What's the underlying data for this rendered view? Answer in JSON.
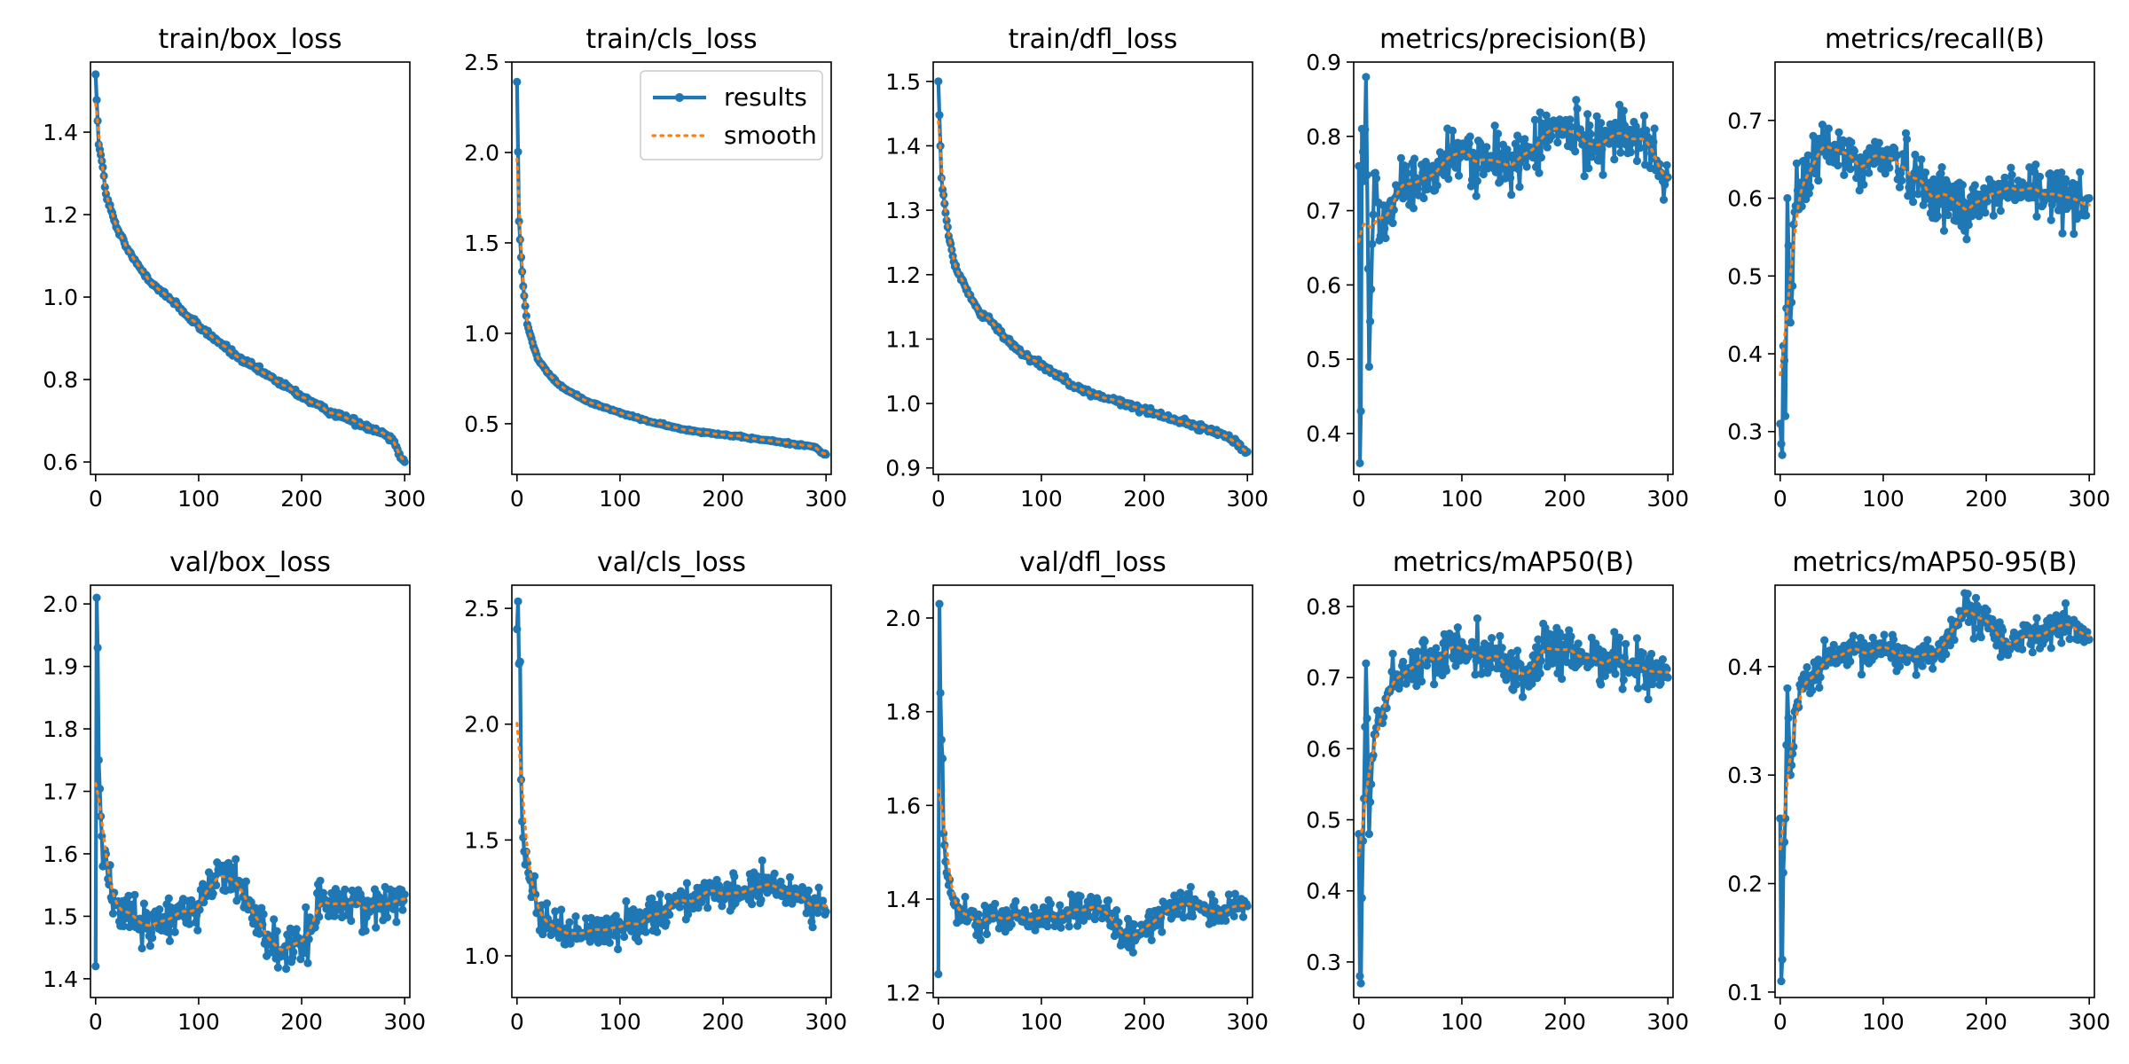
{
  "chart_data": [
    {
      "type": "line",
      "title": "train/box_loss",
      "xlim": [
        -5,
        305
      ],
      "ylim": [
        0.57,
        1.57
      ],
      "xticks": [
        0,
        100,
        200,
        300
      ],
      "yticks": [
        0.6,
        0.8,
        1.0,
        1.2,
        1.4
      ],
      "shape": "decay",
      "x": [
        0,
        3,
        6,
        10,
        15,
        20,
        30,
        40,
        50,
        60,
        70,
        80,
        90,
        100,
        120,
        140,
        160,
        180,
        200,
        220,
        240,
        260,
        280,
        290,
        295,
        300
      ],
      "y": [
        1.54,
        1.37,
        1.33,
        1.25,
        1.21,
        1.17,
        1.12,
        1.08,
        1.05,
        1.02,
        1.0,
        0.98,
        0.95,
        0.93,
        0.89,
        0.85,
        0.82,
        0.79,
        0.76,
        0.73,
        0.71,
        0.69,
        0.67,
        0.65,
        0.62,
        0.6
      ],
      "noise": 0.008
    },
    {
      "type": "line",
      "title": "train/cls_loss",
      "xlim": [
        -5,
        305
      ],
      "ylim": [
        0.22,
        2.5
      ],
      "xticks": [
        0,
        100,
        200,
        300
      ],
      "yticks": [
        0.5,
        1.0,
        1.5,
        2.0,
        2.5
      ],
      "shape": "decay",
      "x": [
        0,
        2,
        4,
        6,
        8,
        10,
        15,
        20,
        30,
        40,
        50,
        70,
        100,
        130,
        160,
        200,
        240,
        280,
        290,
        295,
        300
      ],
      "y": [
        2.39,
        1.62,
        1.42,
        1.26,
        1.15,
        1.05,
        0.95,
        0.86,
        0.78,
        0.72,
        0.68,
        0.62,
        0.56,
        0.51,
        0.47,
        0.44,
        0.41,
        0.38,
        0.37,
        0.34,
        0.33
      ],
      "noise": 0.006,
      "legend": [
        "results",
        "smooth"
      ]
    },
    {
      "type": "line",
      "title": "train/dfl_loss",
      "xlim": [
        -5,
        305
      ],
      "ylim": [
        0.89,
        1.53
      ],
      "xticks": [
        0,
        100,
        200,
        300
      ],
      "yticks": [
        0.9,
        1.0,
        1.1,
        1.2,
        1.3,
        1.4,
        1.5
      ],
      "shape": "decay",
      "x": [
        0,
        3,
        6,
        10,
        15,
        20,
        30,
        40,
        50,
        60,
        80,
        100,
        120,
        140,
        160,
        180,
        200,
        220,
        240,
        260,
        280,
        290,
        295,
        300
      ],
      "y": [
        1.5,
        1.35,
        1.31,
        1.26,
        1.22,
        1.2,
        1.17,
        1.14,
        1.13,
        1.11,
        1.08,
        1.06,
        1.04,
        1.02,
        1.01,
        1.0,
        0.99,
        0.98,
        0.97,
        0.96,
        0.95,
        0.94,
        0.93,
        0.925
      ],
      "noise": 0.005
    },
    {
      "type": "line",
      "title": "metrics/precision(B)",
      "xlim": [
        -5,
        305
      ],
      "ylim": [
        0.345,
        0.9
      ],
      "xticks": [
        0,
        100,
        200,
        300
      ],
      "yticks": [
        0.4,
        0.5,
        0.6,
        0.7,
        0.8,
        0.9
      ],
      "shape": "noisy",
      "x": [
        0,
        1,
        2,
        3,
        5,
        7,
        10,
        15,
        20,
        30,
        40,
        60,
        80,
        100,
        130,
        160,
        180,
        200,
        220,
        240,
        260,
        280,
        290,
        295,
        300
      ],
      "y": [
        0.76,
        0.36,
        0.43,
        0.81,
        0.74,
        0.88,
        0.49,
        0.75,
        0.66,
        0.71,
        0.73,
        0.74,
        0.76,
        0.78,
        0.76,
        0.77,
        0.8,
        0.81,
        0.79,
        0.8,
        0.8,
        0.8,
        0.76,
        0.74,
        0.745
      ],
      "noise": 0.04
    },
    {
      "type": "line",
      "title": "metrics/recall(B)",
      "xlim": [
        -5,
        305
      ],
      "ylim": [
        0.245,
        0.775
      ],
      "xticks": [
        0,
        100,
        200,
        300
      ],
      "yticks": [
        0.3,
        0.4,
        0.5,
        0.6,
        0.7
      ],
      "shape": "noisy",
      "x": [
        0,
        2,
        3,
        5,
        7,
        10,
        15,
        20,
        30,
        40,
        50,
        60,
        80,
        100,
        120,
        140,
        160,
        180,
        200,
        220,
        240,
        260,
        280,
        290,
        300
      ],
      "y": [
        0.31,
        0.27,
        0.41,
        0.32,
        0.6,
        0.44,
        0.59,
        0.62,
        0.64,
        0.66,
        0.66,
        0.66,
        0.64,
        0.66,
        0.64,
        0.62,
        0.6,
        0.59,
        0.6,
        0.61,
        0.61,
        0.6,
        0.61,
        0.6,
        0.6
      ],
      "noise": 0.04
    },
    {
      "type": "line",
      "title": "val/box_loss",
      "xlim": [
        -5,
        305
      ],
      "ylim": [
        1.37,
        2.03
      ],
      "xticks": [
        0,
        100,
        200,
        300
      ],
      "yticks": [
        1.4,
        1.5,
        1.6,
        1.7,
        1.8,
        1.9,
        2.0
      ],
      "shape": "noisy",
      "x": [
        0,
        1,
        2,
        3,
        5,
        7,
        10,
        15,
        20,
        30,
        40,
        50,
        60,
        80,
        100,
        120,
        140,
        160,
        170,
        180,
        200,
        210,
        220,
        240,
        260,
        280,
        290,
        300
      ],
      "y": [
        1.42,
        2.01,
        1.93,
        1.75,
        1.66,
        1.58,
        1.6,
        1.53,
        1.52,
        1.5,
        1.49,
        1.48,
        1.49,
        1.5,
        1.52,
        1.57,
        1.55,
        1.49,
        1.46,
        1.44,
        1.45,
        1.49,
        1.53,
        1.52,
        1.52,
        1.51,
        1.54,
        1.535
      ],
      "noise": 0.035
    },
    {
      "type": "line",
      "title": "val/cls_loss",
      "xlim": [
        -5,
        305
      ],
      "ylim": [
        0.82,
        2.6
      ],
      "xticks": [
        0,
        100,
        200,
        300
      ],
      "yticks": [
        1.0,
        1.5,
        2.0,
        2.5
      ],
      "shape": "noisy",
      "x": [
        0,
        1,
        2,
        3,
        4,
        5,
        7,
        10,
        15,
        20,
        30,
        40,
        50,
        60,
        80,
        100,
        120,
        140,
        160,
        180,
        200,
        220,
        240,
        260,
        280,
        290,
        300
      ],
      "y": [
        2.41,
        2.53,
        2.26,
        2.27,
        1.76,
        1.58,
        1.45,
        1.4,
        1.28,
        1.19,
        1.16,
        1.12,
        1.1,
        1.09,
        1.12,
        1.12,
        1.16,
        1.2,
        1.24,
        1.26,
        1.25,
        1.28,
        1.3,
        1.28,
        1.26,
        1.23,
        1.19
      ],
      "noise": 0.08
    },
    {
      "type": "line",
      "title": "val/dfl_loss",
      "xlim": [
        -5,
        305
      ],
      "ylim": [
        1.19,
        2.07
      ],
      "xticks": [
        0,
        100,
        200,
        300
      ],
      "yticks": [
        1.2,
        1.4,
        1.6,
        1.8,
        2.0
      ],
      "shape": "noisy",
      "x": [
        0,
        1,
        2,
        3,
        4,
        5,
        7,
        10,
        15,
        20,
        30,
        40,
        60,
        80,
        100,
        120,
        140,
        160,
        170,
        180,
        200,
        220,
        240,
        260,
        280,
        290,
        300
      ],
      "y": [
        1.24,
        2.03,
        1.84,
        1.74,
        1.7,
        1.54,
        1.48,
        1.43,
        1.39,
        1.37,
        1.36,
        1.35,
        1.36,
        1.36,
        1.36,
        1.37,
        1.37,
        1.38,
        1.35,
        1.31,
        1.33,
        1.38,
        1.4,
        1.38,
        1.37,
        1.38,
        1.385
      ],
      "noise": 0.035
    },
    {
      "type": "line",
      "title": "metrics/mAP50(B)",
      "xlim": [
        -5,
        305
      ],
      "ylim": [
        0.25,
        0.83
      ],
      "xticks": [
        0,
        100,
        200,
        300
      ],
      "yticks": [
        0.3,
        0.4,
        0.5,
        0.6,
        0.7,
        0.8
      ],
      "shape": "noisy",
      "x": [
        0,
        1,
        2,
        3,
        5,
        7,
        10,
        15,
        20,
        30,
        40,
        60,
        80,
        100,
        120,
        140,
        160,
        180,
        200,
        220,
        240,
        260,
        280,
        290,
        300
      ],
      "y": [
        0.48,
        0.28,
        0.27,
        0.39,
        0.53,
        0.72,
        0.48,
        0.62,
        0.65,
        0.68,
        0.7,
        0.72,
        0.73,
        0.75,
        0.74,
        0.72,
        0.7,
        0.74,
        0.73,
        0.73,
        0.73,
        0.72,
        0.72,
        0.71,
        0.7
      ],
      "noise": 0.035
    },
    {
      "type": "line",
      "title": "metrics/mAP50-95(B)",
      "xlim": [
        -5,
        305
      ],
      "ylim": [
        0.095,
        0.475
      ],
      "xticks": [
        0,
        100,
        200,
        300
      ],
      "yticks": [
        0.1,
        0.2,
        0.3,
        0.4
      ],
      "shape": "noisy",
      "x": [
        0,
        1,
        2,
        3,
        5,
        7,
        10,
        15,
        20,
        30,
        40,
        60,
        80,
        100,
        120,
        140,
        160,
        175,
        200,
        220,
        240,
        260,
        280,
        290,
        300
      ],
      "y": [
        0.26,
        0.11,
        0.13,
        0.21,
        0.26,
        0.38,
        0.3,
        0.36,
        0.38,
        0.39,
        0.4,
        0.41,
        0.41,
        0.42,
        0.41,
        0.41,
        0.42,
        0.45,
        0.44,
        0.42,
        0.43,
        0.43,
        0.44,
        0.43,
        0.425
      ],
      "noise": 0.017
    }
  ]
}
